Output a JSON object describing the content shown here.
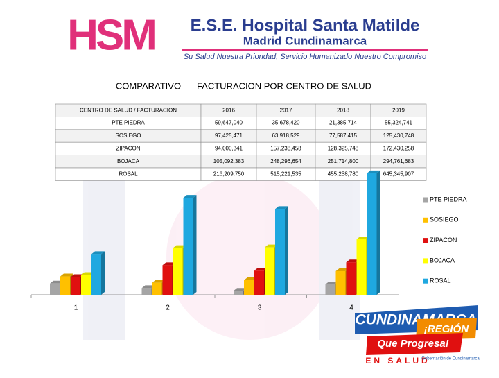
{
  "header": {
    "logo": "HSM",
    "name": "E.S.E. Hospital Santa Matilde",
    "place": "Madrid Cundinamarca",
    "slogan": "Su Salud Nuestra Prioridad, Servicio Humanizado Nuestro Compromiso"
  },
  "title": {
    "left": "COMPARATIVO",
    "right": "FACTURACION POR CENTRO DE SALUD"
  },
  "table": {
    "header": [
      "CENTRO DE SALUD / FACTURACION",
      "2016",
      "2017",
      "2018",
      "2019"
    ],
    "rows": [
      [
        "PTE PIEDRA",
        "59,647,040",
        "35,678,420",
        "21,385,714",
        "55,324,741"
      ],
      [
        "SOSIEGO",
        "97,425,471",
        "63,918,529",
        "77,587,415",
        "125,430,748"
      ],
      [
        "ZIPACON",
        "94,000,341",
        "157,238,458",
        "128,325,748",
        "172,430,258"
      ],
      [
        "BOJACA",
        "105,092,383",
        "248,296,654",
        "251,714,800",
        "294,761,683"
      ],
      [
        "ROSAL",
        "216,209,750",
        "515,221,535",
        "455,258,780",
        "645,345,907"
      ]
    ]
  },
  "chart_data": {
    "type": "bar3d",
    "categories": [
      "1",
      "2",
      "3",
      "4"
    ],
    "ylim": [
      0,
      700000000
    ],
    "series": [
      {
        "name": "PTE PIEDRA",
        "color": "#a5a5a5",
        "values": [
          59647040,
          35678420,
          21385714,
          55324741
        ]
      },
      {
        "name": "SOSIEGO",
        "color": "#ffc000",
        "values": [
          97425471,
          63918529,
          77587415,
          125430748
        ]
      },
      {
        "name": "ZIPACON",
        "color": "#e01010",
        "values": [
          94000341,
          157238458,
          128325748,
          172430258
        ]
      },
      {
        "name": "BOJACA",
        "color": "#ffff00",
        "values": [
          105092383,
          248296654,
          251714800,
          294761683
        ]
      },
      {
        "name": "ROSAL",
        "color": "#1fa8e0",
        "values": [
          216209750,
          515221535,
          455258780,
          645345907
        ]
      }
    ],
    "legend": "right"
  },
  "footer": {
    "brand": "CUNDINAMARCA",
    "region": "¡REGIÓN",
    "motto": "Que Progresa!",
    "health": "EN SALUD",
    "gov": "Gobernación de Cundinamarca"
  }
}
